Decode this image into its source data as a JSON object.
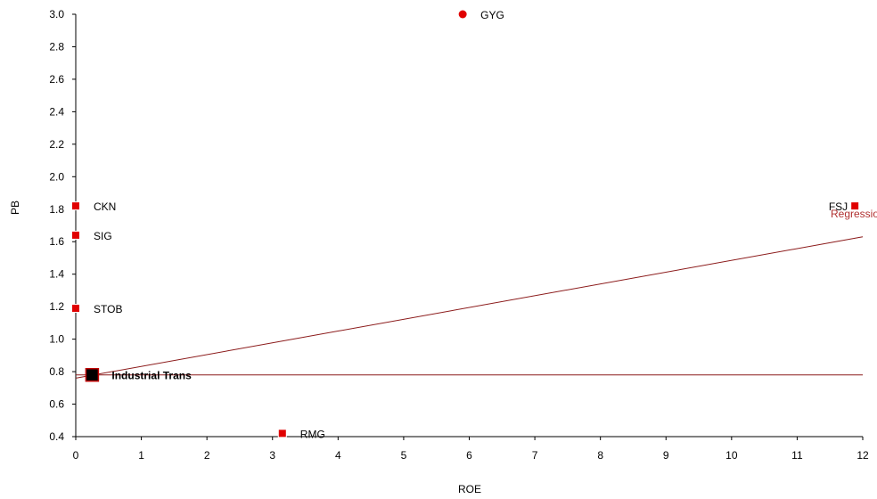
{
  "chart_data": {
    "type": "scatter",
    "xlabel": "ROE",
    "ylabel": "PB",
    "xlim": [
      0,
      12
    ],
    "ylim": [
      0.4,
      3.0
    ],
    "x_ticks": [
      0,
      1,
      2,
      3,
      4,
      5,
      6,
      7,
      8,
      9,
      10,
      11,
      12
    ],
    "y_ticks": [
      0.4,
      0.6,
      0.8,
      1.0,
      1.2,
      1.4,
      1.6,
      1.8,
      2.0,
      2.2,
      2.4,
      2.6,
      2.8,
      3.0
    ],
    "y_tick_labels": [
      "0.4",
      "0.6",
      "0.8",
      "1.0",
      "1.2",
      "1.4",
      "1.6",
      "1.8",
      "2.0",
      "2.2",
      "2.4",
      "2.6",
      "2.8",
      "3.0"
    ],
    "points": [
      {
        "label": "GYG",
        "x": 5.9,
        "y": 3.0,
        "marker": "circle",
        "bold": false
      },
      {
        "label": "CKN",
        "x": 0.0,
        "y": 1.82,
        "marker": "square",
        "bold": false
      },
      {
        "label": "SIG",
        "x": 0.0,
        "y": 1.64,
        "marker": "square",
        "bold": false
      },
      {
        "label": "STOB",
        "x": 0.0,
        "y": 1.19,
        "marker": "square",
        "bold": false
      },
      {
        "label": "FSJ",
        "x": 11.88,
        "y": 1.82,
        "marker": "square",
        "bold": false,
        "label_side": "left"
      },
      {
        "label": "RMG",
        "x": 3.15,
        "y": 0.42,
        "marker": "square",
        "bold": false
      },
      {
        "label": "Industrial Trans",
        "x": 0.25,
        "y": 0.78,
        "marker": "square-large",
        "bold": true
      }
    ],
    "regression_line": {
      "label": "Regression",
      "x": [
        0,
        12
      ],
      "y": [
        0.76,
        1.63
      ]
    },
    "reference_line": {
      "y": 0.78
    },
    "colors": {
      "point": "#e00000",
      "point_edge": "#ffffff",
      "highlight_fill": "#000000",
      "highlight_edge": "#c00000",
      "line": "#8b1a1a",
      "regression_label": "#b03030",
      "axis": "#000000"
    },
    "grid": false
  }
}
